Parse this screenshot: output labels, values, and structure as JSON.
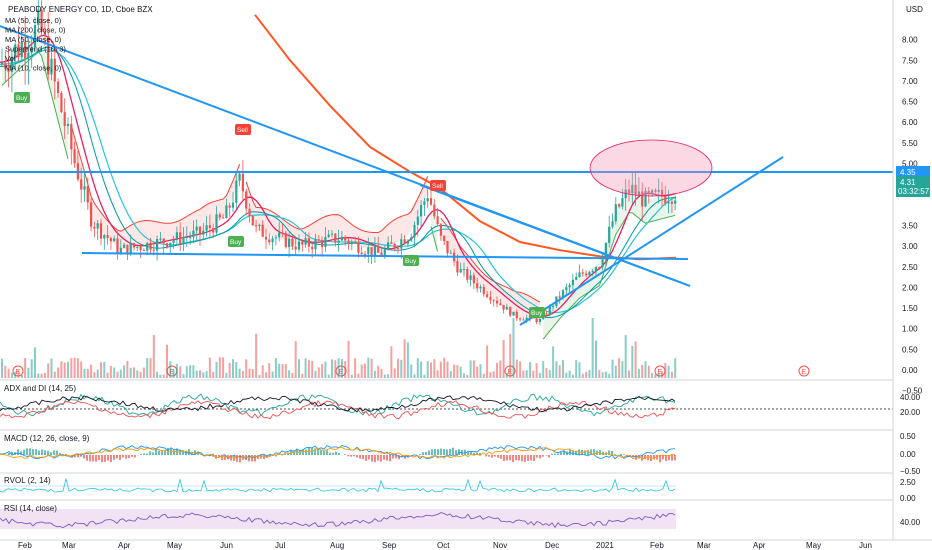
{
  "header": {
    "symbol_title": "PEABODY ENERGY CO, 1D, Cboe BZX",
    "currency": "USD"
  },
  "legend": [
    "MA (50, close, 0)",
    "MA (200, close, 0)",
    "MA (50, close, 0)",
    "Supertrend (10, 3)",
    "Vol",
    "MA (10, close, 0)"
  ],
  "price_tags": {
    "tag1": "4.35",
    "tag2": "4.31",
    "countdown": "03:32:57"
  },
  "signals": [
    "Buy",
    "Sell",
    "Buy",
    "Sell",
    "Buy",
    "Buy"
  ],
  "earnings_marker": "E",
  "x_axis_labels": [
    "Feb",
    "Mar",
    "Apr",
    "May",
    "Jun",
    "Jul",
    "Aug",
    "Sep",
    "Oct",
    "Nov",
    "Dec",
    "2021",
    "Feb",
    "Mar",
    "Apr",
    "May",
    "Jun"
  ],
  "price_axis_labels": [
    "8.00",
    "7.50",
    "7.00",
    "6.50",
    "6.00",
    "5.50",
    "5.00",
    "4.50",
    "3.50",
    "3.00",
    "2.50",
    "2.00",
    "1.50",
    "1.00",
    "0.50",
    "0.00",
    "−0.50"
  ],
  "panes": {
    "adx": {
      "title": "ADX and DI (14, 25)",
      "ticks": [
        "40.00",
        "20.00"
      ]
    },
    "macd": {
      "title": "MACD (12, 26, close, 9)",
      "ticks": [
        "0.50",
        "0.00",
        "−0.50"
      ]
    },
    "rvol": {
      "title": "RVOL (2, 14)",
      "ticks": [
        "2.50",
        "0.00"
      ]
    },
    "rsi": {
      "title": "RSI (14, close)",
      "ticks": [
        "40.00"
      ]
    }
  },
  "colors": {
    "candle_up": "#26a69a",
    "candle_down": "#ef5350",
    "trendline": "#2196f3",
    "ma200": "#ff5722",
    "ma_fast": "#e91e63",
    "ma_teal": "#26c6da",
    "supertrend_up": "#4caf50",
    "supertrend_down": "#f44336",
    "ellipse": "#f48fb1",
    "rsi_band": "#e1bee7",
    "rsi_line": "#7e57c2"
  },
  "chart_data": {
    "type": "line",
    "title": "PEABODY ENERGY CO, 1D, Cboe BZX",
    "x": [
      "Feb",
      "Mar",
      "Apr",
      "May",
      "Jun",
      "Jul",
      "Aug",
      "Sep",
      "Oct",
      "Nov",
      "Dec",
      "2021",
      "Feb"
    ],
    "series": [
      {
        "name": "MA (200, close, 0)",
        "values": [
          null,
          null,
          8.2,
          7.2,
          6.2,
          5.5,
          5.1,
          4.75,
          4.35,
          3.3,
          2.8,
          2.65,
          2.7
        ]
      },
      {
        "name": "MA (50, close, 0)",
        "values": [
          7.8,
          5.5,
          3.6,
          3.3,
          3.5,
          3.2,
          3.0,
          2.6,
          2.9,
          2.3,
          1.6,
          2.2,
          3.4
        ]
      },
      {
        "name": "MA (10, close, 0)",
        "values": [
          7.5,
          4.5,
          3.1,
          3.1,
          3.9,
          3.0,
          3.0,
          2.9,
          3.9,
          2.1,
          1.2,
          2.7,
          4.2
        ]
      }
    ],
    "ylim": [
      -0.5,
      8.5
    ],
    "annotations": [
      "Buy",
      "Sell",
      "Buy",
      "Sell",
      "Buy",
      "Buy"
    ],
    "current_price": 4.31
  }
}
